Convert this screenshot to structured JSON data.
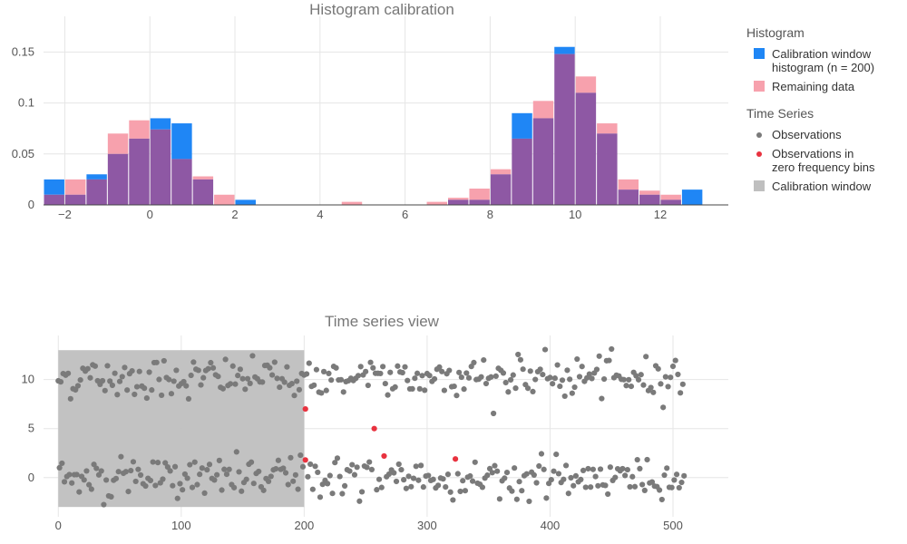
{
  "colors": {
    "calibration_bar": "#1f86f5",
    "remaining_bar": "#f7a1ad",
    "overlap_bar": "#8e58a4",
    "observation": "#7a7a7a",
    "zero_freq": "#e8323f",
    "calib_window": "#bfbfbf"
  },
  "legend": {
    "hist_group_title": "Histogram",
    "calibration_label_line1": "Calibration window",
    "calibration_label_line2": "histogram (n = 200)",
    "remaining_label": "Remaining data",
    "ts_group_title": "Time Series",
    "observations_label": "Observations",
    "zero_label_line1": "Observations in",
    "zero_label_line2": "zero frequency bins",
    "window_label": "Calibration window"
  },
  "chart_data": [
    {
      "type": "bar",
      "title": "Histogram calibration",
      "bin_width": 0.5,
      "bin_starts": [
        -2.5,
        -2,
        -1.5,
        -1,
        -0.5,
        0,
        0.5,
        1,
        1.5,
        2,
        2.5,
        3,
        3.5,
        4,
        4.5,
        5,
        5.5,
        6,
        6.5,
        7,
        7.5,
        8,
        8.5,
        9,
        9.5,
        10,
        10.5,
        11,
        11.5,
        12,
        12.5,
        13
      ],
      "series": [
        {
          "name": "Calibration window histogram (n = 200)",
          "values": [
            0.025,
            0.01,
            0.03,
            0.05,
            0.065,
            0.085,
            0.08,
            0.025,
            0,
            0.005,
            0,
            0,
            0,
            0,
            0,
            0,
            0,
            0,
            0,
            0.005,
            0.005,
            0.03,
            0.09,
            0.085,
            0.155,
            0.11,
            0.07,
            0.015,
            0.01,
            0.005,
            0.015,
            0
          ]
        },
        {
          "name": "Remaining data",
          "values": [
            0.01,
            0.025,
            0.025,
            0.07,
            0.083,
            0.074,
            0.045,
            0.028,
            0.01,
            0,
            0,
            0,
            0,
            0,
            0.003,
            0,
            0,
            0,
            0.003,
            0.007,
            0.016,
            0.035,
            0.065,
            0.102,
            0.148,
            0.126,
            0.08,
            0.025,
            0.014,
            0.01,
            0,
            0
          ]
        }
      ],
      "x_ticks": [
        -2,
        0,
        2,
        4,
        6,
        8,
        10,
        12
      ],
      "y_ticks": [
        0,
        0.05,
        0.1,
        0.15
      ],
      "x_tick_labels": [
        "−2",
        "0",
        "2",
        "4",
        "6",
        "8",
        "10",
        "12"
      ],
      "y_tick_labels": [
        "0",
        "0.05",
        "0.1",
        "0.15"
      ],
      "xlim": [
        -2.5,
        13.6
      ],
      "ylim": [
        0,
        0.185
      ],
      "grid": true
    },
    {
      "type": "scatter",
      "title": "Time series view",
      "n_points": 510,
      "calibration_window": {
        "x": [
          0,
          200
        ],
        "y": [
          -3,
          13
        ]
      },
      "upper_mode_mean": 10.2,
      "lower_mode_mean": 0,
      "zero_frequency_points": [
        {
          "x": 201,
          "y": 7.0
        },
        {
          "x": 201,
          "y": 1.8
        },
        {
          "x": 257,
          "y": 5.0
        },
        {
          "x": 265,
          "y": 2.2
        },
        {
          "x": 323,
          "y": 1.9
        }
      ],
      "x_ticks": [
        0,
        100,
        200,
        300,
        400,
        500
      ],
      "y_ticks": [
        0,
        5,
        10
      ],
      "x_tick_labels": [
        "0",
        "100",
        "200",
        "300",
        "400",
        "500"
      ],
      "y_tick_labels": [
        "0",
        "5",
        "10"
      ],
      "xlim": [
        -12,
        545
      ],
      "ylim": [
        -4,
        14.5
      ],
      "grid": true
    }
  ]
}
